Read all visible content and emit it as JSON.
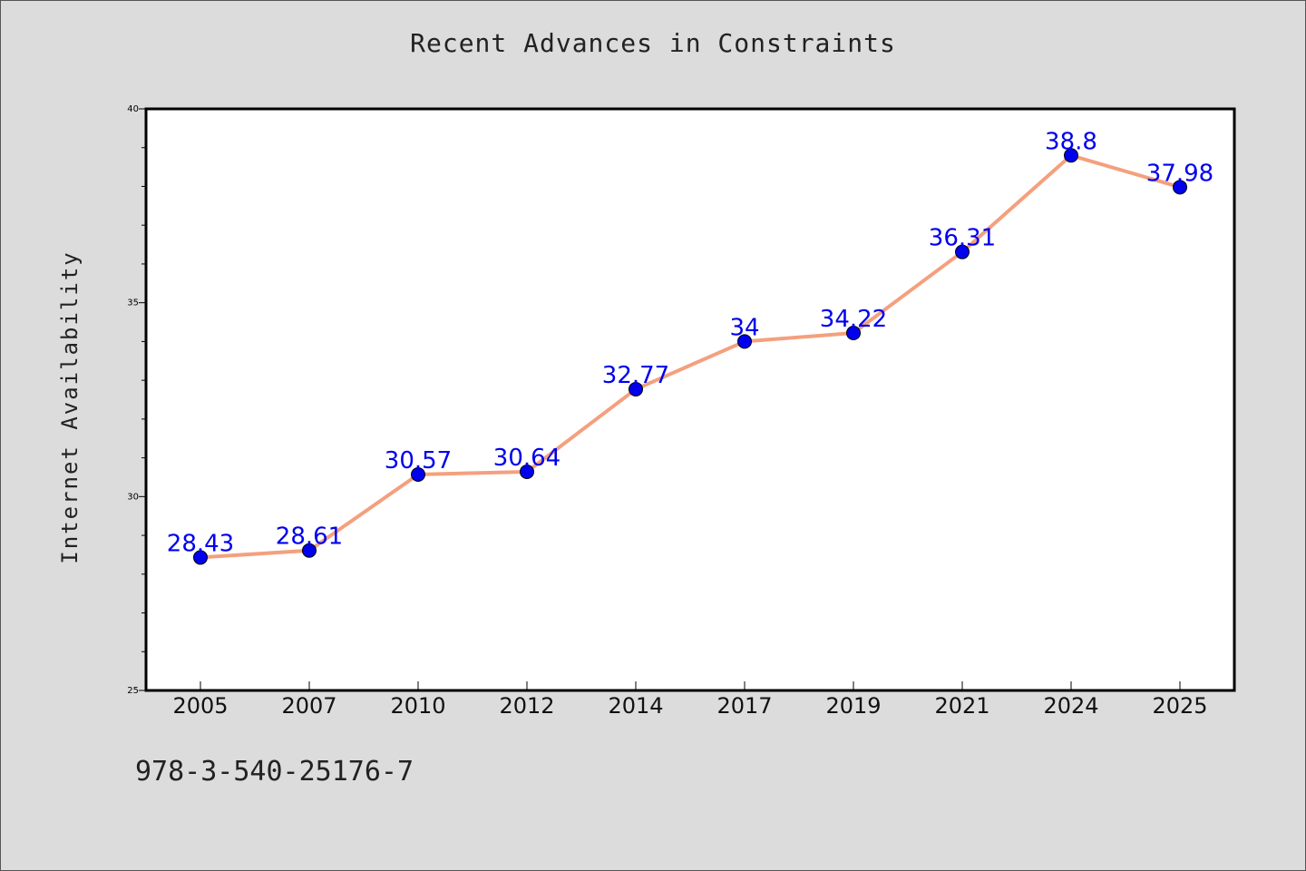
{
  "chart_data": {
    "type": "line",
    "title": "Recent Advances in Constraints",
    "xlabel": "",
    "ylabel": "Internet Availability",
    "categories": [
      "2005",
      "2007",
      "2010",
      "2012",
      "2014",
      "2017",
      "2019",
      "2021",
      "2024",
      "2025"
    ],
    "series": [
      {
        "values": [
          28.43,
          28.61,
          30.57,
          30.64,
          32.77,
          34,
          34.22,
          36.31,
          38.8,
          37.98
        ],
        "labels": [
          "28.43",
          "28.61",
          "30.57",
          "30.64",
          "32.77",
          "34",
          "34.22",
          "36.31",
          "38.8",
          "37.98"
        ]
      }
    ],
    "ylim": [
      25,
      40
    ],
    "y_ticks": [
      "25",
      "30",
      "35",
      "40"
    ],
    "grid": false,
    "line_color": "#f4a07e",
    "marker_color": "#0000ee",
    "label_color": "#0000ee"
  },
  "footnote": "978-3-540-25176-7"
}
